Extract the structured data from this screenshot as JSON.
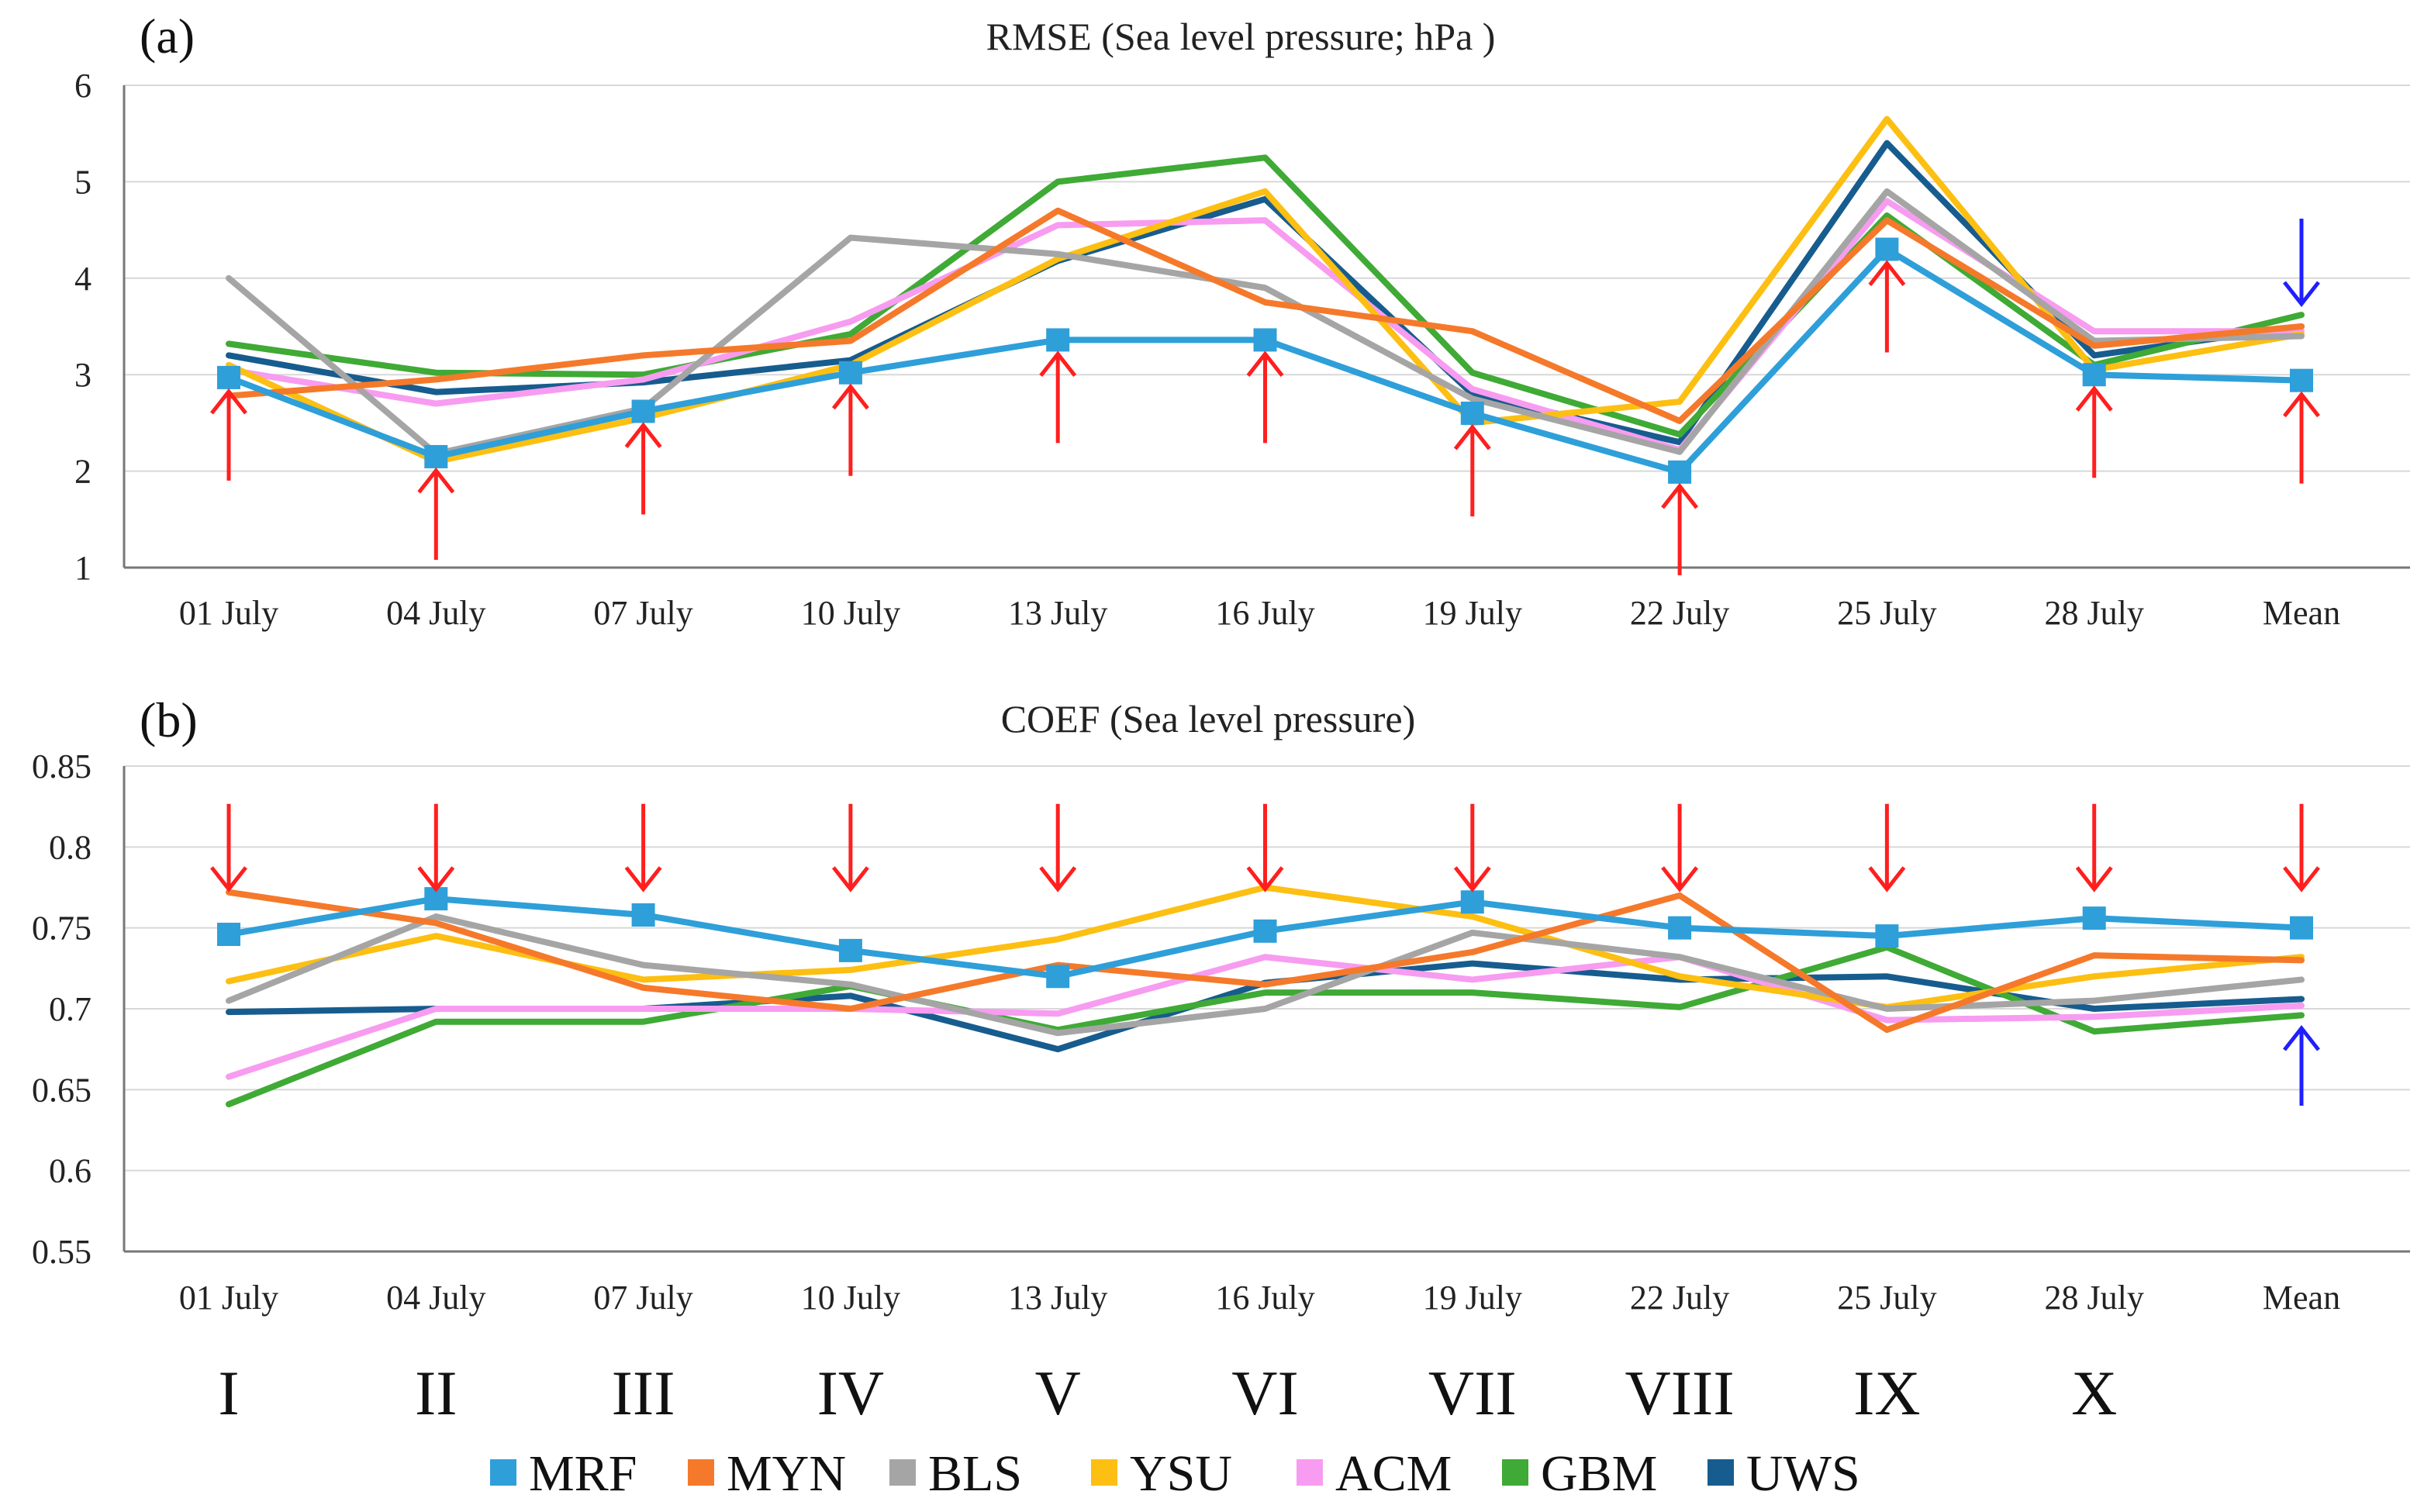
{
  "colors": {
    "MRF": "#2e9fd9",
    "MYN": "#f5792a",
    "BLS": "#a5a5a5",
    "YSU": "#fcbf12",
    "ACM": "#f79cf0",
    "GBM": "#3faa35",
    "UWS": "#175c8e",
    "up_arrow": "#ff1f1f",
    "blue_arrow": "#1f1fff"
  },
  "chart_data": [
    {
      "id": "a",
      "type": "line",
      "panel_label": "(a)",
      "title": "RMSE (Sea level pressure; hPa )",
      "categories": [
        "01 July",
        "04 July",
        "07 July",
        "10 July",
        "13 July",
        "16 July",
        "19 July",
        "22 July",
        "25 July",
        "28 July",
        "Mean"
      ],
      "ylim": [
        1,
        6
      ],
      "yticks": [
        "1",
        "2",
        "3",
        "4",
        "5",
        "6"
      ],
      "grid": true,
      "series": [
        {
          "name": "MRF",
          "values": [
            2.97,
            2.15,
            2.62,
            3.02,
            3.36,
            3.36,
            2.6,
            1.99,
            4.3,
            3.0,
            2.94
          ],
          "markers": true
        },
        {
          "name": "MYN",
          "values": [
            2.78,
            2.95,
            3.2,
            3.35,
            4.7,
            3.75,
            3.45,
            2.52,
            4.6,
            3.3,
            3.5
          ]
        },
        {
          "name": "BLS",
          "values": [
            4.0,
            2.18,
            2.65,
            4.42,
            4.25,
            3.9,
            2.75,
            2.2,
            4.9,
            3.35,
            3.4
          ]
        },
        {
          "name": "YSU",
          "values": [
            3.1,
            2.1,
            2.55,
            3.1,
            4.2,
            4.9,
            2.5,
            2.72,
            5.65,
            3.05,
            3.42
          ]
        },
        {
          "name": "ACM",
          "values": [
            3.05,
            2.7,
            2.95,
            3.55,
            4.55,
            4.6,
            2.85,
            2.22,
            4.8,
            3.45,
            3.45
          ]
        },
        {
          "name": "GBM",
          "values": [
            3.32,
            3.02,
            3.0,
            3.42,
            5.0,
            5.25,
            3.02,
            2.38,
            4.65,
            3.1,
            3.62
          ]
        },
        {
          "name": "UWS",
          "values": [
            3.2,
            2.82,
            2.92,
            3.15,
            4.18,
            4.82,
            2.8,
            2.3,
            5.4,
            3.2,
            3.5
          ]
        }
      ],
      "red_arrows": [
        {
          "index": 0,
          "direction": "up"
        },
        {
          "index": 1,
          "direction": "up"
        },
        {
          "index": 2,
          "direction": "up"
        },
        {
          "index": 3,
          "direction": "up"
        },
        {
          "index": 4,
          "direction": "up"
        },
        {
          "index": 5,
          "direction": "up"
        },
        {
          "index": 6,
          "direction": "up"
        },
        {
          "index": 7,
          "direction": "up"
        },
        {
          "index": 8,
          "direction": "up"
        },
        {
          "index": 9,
          "direction": "up"
        },
        {
          "index": 10,
          "direction": "up"
        }
      ],
      "blue_arrows": [
        {
          "index": 10,
          "direction": "down"
        }
      ]
    },
    {
      "id": "b",
      "type": "line",
      "panel_label": "(b)",
      "title": "COEF (Sea level pressure)",
      "categories": [
        "01 July",
        "04 July",
        "07 July",
        "10 July",
        "13 July",
        "16 July",
        "19 July",
        "22 July",
        "25 July",
        "28 July",
        "Mean"
      ],
      "ylim": [
        0.55,
        0.85
      ],
      "yticks": [
        "0.55",
        "0.6",
        "0.65",
        "0.7",
        "0.75",
        "0.8",
        "0.85"
      ],
      "grid": true,
      "series": [
        {
          "name": "MRF",
          "values": [
            0.746,
            0.768,
            0.758,
            0.736,
            0.72,
            0.748,
            0.766,
            0.75,
            0.745,
            0.756,
            0.75
          ],
          "markers": true
        },
        {
          "name": "MYN",
          "values": [
            0.772,
            0.753,
            0.713,
            0.7,
            0.727,
            0.715,
            0.735,
            0.77,
            0.687,
            0.733,
            0.73
          ]
        },
        {
          "name": "BLS",
          "values": [
            0.705,
            0.757,
            0.727,
            0.715,
            0.685,
            0.7,
            0.747,
            0.732,
            0.7,
            0.705,
            0.718
          ]
        },
        {
          "name": "YSU",
          "values": [
            0.717,
            0.745,
            0.718,
            0.724,
            0.743,
            0.775,
            0.757,
            0.72,
            0.701,
            0.72,
            0.732
          ]
        },
        {
          "name": "ACM",
          "values": [
            0.658,
            0.7,
            0.7,
            0.7,
            0.697,
            0.732,
            0.718,
            0.732,
            0.693,
            0.695,
            0.702
          ]
        },
        {
          "name": "GBM",
          "values": [
            0.641,
            0.692,
            0.692,
            0.714,
            0.687,
            0.71,
            0.71,
            0.701,
            0.738,
            0.686,
            0.696
          ]
        },
        {
          "name": "UWS",
          "values": [
            0.698,
            0.7,
            0.7,
            0.708,
            0.675,
            0.716,
            0.728,
            0.718,
            0.72,
            0.7,
            0.706
          ]
        }
      ],
      "red_arrows": [
        {
          "index": 0,
          "direction": "down"
        },
        {
          "index": 1,
          "direction": "down"
        },
        {
          "index": 2,
          "direction": "down"
        },
        {
          "index": 3,
          "direction": "down"
        },
        {
          "index": 4,
          "direction": "down"
        },
        {
          "index": 5,
          "direction": "down"
        },
        {
          "index": 6,
          "direction": "down"
        },
        {
          "index": 7,
          "direction": "down"
        },
        {
          "index": 8,
          "direction": "down"
        },
        {
          "index": 9,
          "direction": "down"
        },
        {
          "index": 10,
          "direction": "down"
        }
      ],
      "blue_arrows": [
        {
          "index": 10,
          "direction": "up"
        }
      ]
    }
  ],
  "roman_labels": [
    "I",
    "II",
    "III",
    "IV",
    "V",
    "VI",
    "VII",
    "VIII",
    "IX",
    "X"
  ],
  "legend": [
    "MRF",
    "MYN",
    "BLS",
    "YSU",
    "ACM",
    "GBM",
    "UWS"
  ]
}
